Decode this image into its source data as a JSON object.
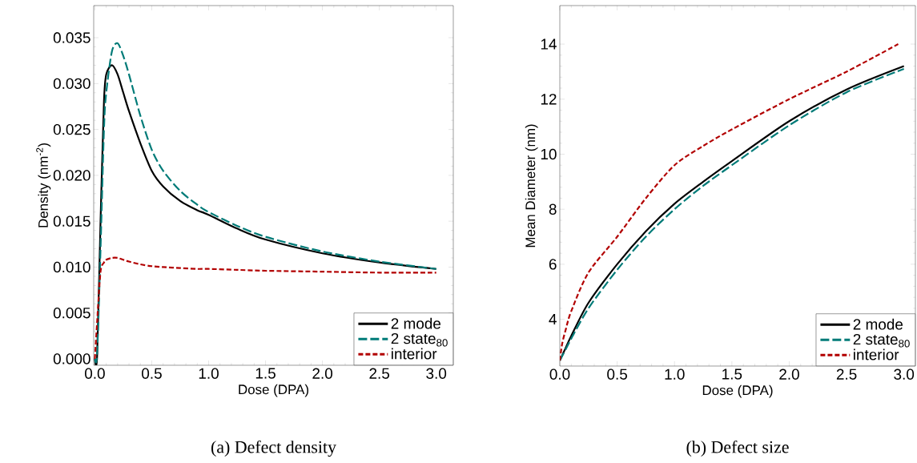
{
  "chart_data": [
    {
      "type": "line",
      "title": "(a) Defect density",
      "xlabel": "Dose (DPA)",
      "ylabel": "Density (nm$^{-2}$)",
      "xlim": [
        -0.01,
        3.15
      ],
      "ylim": [
        -0.0007,
        0.0385
      ],
      "xticks": [
        {
          "value": 0,
          "label": "0.0"
        },
        0.5,
        {
          "value": 1,
          "label": "1.0"
        },
        1.5,
        {
          "value": 2,
          "label": "2.0"
        },
        2.5,
        {
          "value": 3,
          "label": "3.0"
        }
      ],
      "yticks": [
        {
          "value": 0,
          "label": "0.000"
        },
        0.005,
        {
          "value": 0.01,
          "label": "0.010"
        },
        0.015,
        {
          "value": 0.02,
          "label": "0.020"
        },
        0.025,
        {
          "value": 0.03,
          "label": "0.030"
        },
        0.035
      ],
      "legend": "bottom right",
      "x": [
        0,
        0.02,
        0.05,
        0.08,
        0.1,
        0.15,
        0.2,
        0.25,
        0.3,
        0.4,
        0.5,
        0.6,
        0.75,
        0.9,
        1.0,
        1.25,
        1.5,
        2.0,
        2.5,
        3.0
      ],
      "series": [
        {
          "name": "2 mode",
          "color": "#000000",
          "line_style": "solid",
          "values": [
            0,
            0.0003,
            0.015,
            0.028,
            0.031,
            0.032,
            0.031,
            0.029,
            0.027,
            0.0235,
            0.0205,
            0.0188,
            0.0172,
            0.0162,
            0.0157,
            0.0142,
            0.013,
            0.0115,
            0.0105,
            0.0098
          ]
        },
        {
          "name": "2 state$_{80}$",
          "color": "#007b78",
          "line_style": "dashed",
          "values": [
            0,
            0.0005,
            0.012,
            0.025,
            0.029,
            0.0335,
            0.0344,
            0.033,
            0.031,
            0.0265,
            0.0228,
            0.0205,
            0.0183,
            0.0168,
            0.016,
            0.0145,
            0.0133,
            0.0117,
            0.0106,
            0.0098
          ]
        },
        {
          "name": "interior",
          "color": "#b20000",
          "line_style": "dotted",
          "values": [
            0,
            0.004,
            0.0095,
            0.0105,
            0.0108,
            0.011,
            0.011,
            0.0108,
            0.0106,
            0.0103,
            0.0101,
            0.01,
            0.0099,
            0.0098,
            0.0098,
            0.0097,
            0.0096,
            0.0095,
            0.0094,
            0.0094
          ]
        }
      ]
    },
    {
      "type": "line",
      "title": "(b) Defect size",
      "xlabel": "Dose (DPA)",
      "ylabel": "Mean Diameter (nm)",
      "xlim": [
        0,
        3.1
      ],
      "ylim": [
        2.3,
        15.4
      ],
      "xticks": [
        {
          "value": 0,
          "label": "0.0"
        },
        0.5,
        {
          "value": 1,
          "label": "1.0"
        },
        1.5,
        {
          "value": 2,
          "label": "2.0"
        },
        2.5,
        {
          "value": 3,
          "label": "3.0"
        }
      ],
      "yticks": [
        4,
        6,
        8,
        10,
        12,
        14
      ],
      "legend": "bottom right",
      "x": [
        0,
        0.05,
        0.1,
        0.25,
        0.5,
        0.75,
        1.0,
        1.25,
        1.5,
        2.0,
        2.5,
        3.0
      ],
      "series": [
        {
          "name": "2 mode",
          "color": "#000000",
          "line_style": "solid",
          "values": [
            2.5,
            2.95,
            3.4,
            4.6,
            6.0,
            7.2,
            8.2,
            9.0,
            9.75,
            11.2,
            12.35,
            13.2
          ]
        },
        {
          "name": "2 state$_{80}$",
          "color": "#007b78",
          "line_style": "dashed",
          "values": [
            2.5,
            2.9,
            3.3,
            4.4,
            5.8,
            7.0,
            8.0,
            8.85,
            9.6,
            11.05,
            12.25,
            13.1
          ]
        },
        {
          "name": "interior",
          "color": "#b20000",
          "line_style": "dotted",
          "x": [
            0,
            0.02,
            0.05,
            0.1,
            0.25,
            0.5,
            0.75,
            1.0,
            1.25,
            1.5,
            2.0,
            2.5,
            2.95
          ],
          "values": [
            2.5,
            3.1,
            3.6,
            4.3,
            5.7,
            7.0,
            8.4,
            9.6,
            10.3,
            10.9,
            12.0,
            13.0,
            14.0
          ]
        }
      ]
    }
  ]
}
